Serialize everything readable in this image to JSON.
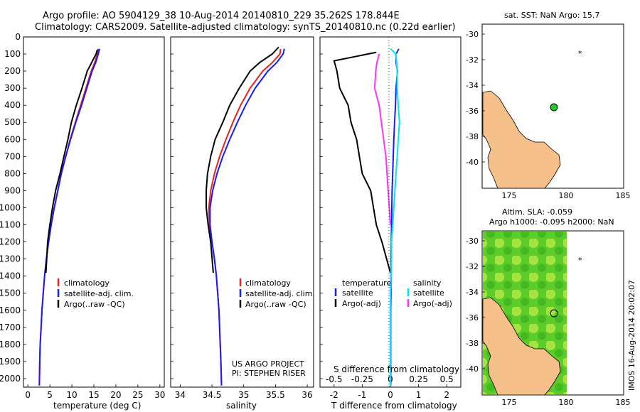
{
  "header": {
    "line1": "Argo profile: AO 5904129_38 10-Aug-2014 20140810_229 35.262S 178.844E",
    "line2": "Climatology: CARS2009. Satellite-adjusted climatology: synTS_20140810.nc (0.22d earlier)"
  },
  "colors": {
    "climatology": "#e8231a",
    "satellite": "#1a1aff",
    "argo": "#000000",
    "sal_sat": "#00e5ee",
    "sal_argo": "#ff33ff",
    "land": "#f6c08b"
  },
  "panels": {
    "temperature": {
      "xlabel": "temperature (deg C)",
      "xticks": [
        "0",
        "5",
        "10",
        "15",
        "20",
        "25",
        "30"
      ],
      "yticks": [
        "0",
        "100",
        "200",
        "300",
        "400",
        "500",
        "600",
        "700",
        "800",
        "900",
        "1000",
        "1100",
        "1200",
        "1300",
        "1400",
        "1500",
        "1600",
        "1700",
        "1800",
        "1900",
        "2000"
      ],
      "legend": [
        "climatology",
        "satellite-adj. clim.",
        "Argo(..raw -QC)"
      ]
    },
    "salinity": {
      "xlabel": "salinity",
      "xticks": [
        "34",
        "34.5",
        "35",
        "35.5",
        "36"
      ],
      "legend": [
        "climatology",
        "satellite-adj. clim.",
        "Argo(..raw -QC)"
      ],
      "credit1": "US ARGO PROJECT",
      "credit2": "PI: STEPHEN RISER"
    },
    "difference": {
      "xlabel_bottom": "T difference from climatology",
      "xlabel_top": "S difference from climatology",
      "xticks_bottom": [
        "-2",
        "-1",
        "0",
        "1",
        "2"
      ],
      "xticks_top": [
        "-0.5",
        "-0.25",
        "0",
        "0.25",
        "0.5"
      ],
      "legend_t_title": "temperature",
      "legend_s_title": "salinity",
      "legend_t": [
        "satellite",
        "Argo(-adj)"
      ],
      "legend_s": [
        "satellite",
        "Argo(-adj)"
      ]
    }
  },
  "maps": {
    "top_title": "sat. SST: NaN Argo: 15.7",
    "bottom_title1": "Altim. SLA: -0.059",
    "bottom_title2": "Argo h1000: -0.095 h2000: NaN",
    "yticks": [
      "-30",
      "-32",
      "-34",
      "-36",
      "-38",
      "-40"
    ],
    "xticks": [
      "175",
      "180",
      "185"
    ],
    "side_label": "IMOS 16-Aug-2014 20:02:07"
  },
  "chart_data": [
    {
      "type": "line",
      "title": "",
      "xlabel": "temperature (deg C)",
      "ylabel": "",
      "xlim": [
        -1,
        31
      ],
      "ylim": [
        2050,
        0
      ],
      "series": [
        {
          "name": "climatology",
          "x": [
            16.0,
            15.8,
            15.2,
            14.4,
            13.2,
            12.0,
            10.8,
            9.6,
            8.6,
            7.6,
            6.8,
            6.0,
            5.3,
            4.7,
            4.2,
            3.8,
            3.5,
            3.2,
            3.0,
            2.8,
            2.7,
            2.6
          ],
          "y": [
            70,
            100,
            150,
            200,
            300,
            400,
            500,
            600,
            700,
            800,
            900,
            1000,
            1100,
            1200,
            1300,
            1400,
            1500,
            1600,
            1700,
            1800,
            1900,
            2040
          ]
        },
        {
          "name": "satellite-adj. clim.",
          "x": [
            16.3,
            16.0,
            15.4,
            14.6,
            13.4,
            12.2,
            10.9,
            9.7,
            8.6,
            7.6,
            6.8,
            6.0,
            5.3,
            4.7,
            4.2,
            3.8,
            3.5,
            3.2,
            3.0,
            2.8,
            2.7,
            2.6
          ],
          "y": [
            70,
            100,
            150,
            200,
            300,
            400,
            500,
            600,
            700,
            800,
            900,
            1000,
            1100,
            1200,
            1300,
            1400,
            1500,
            1600,
            1700,
            1800,
            1900,
            2040
          ]
        },
        {
          "name": "Argo(..raw -QC)",
          "x": [
            15.8,
            15.5,
            14.5,
            13.5,
            12.3,
            11.0,
            9.9,
            9.1,
            8.2,
            7.3,
            6.3,
            5.6,
            5.0,
            4.5,
            4.1
          ],
          "y": [
            75,
            100,
            150,
            200,
            300,
            400,
            500,
            600,
            700,
            800,
            900,
            1000,
            1100,
            1200,
            1380
          ]
        }
      ]
    },
    {
      "type": "line",
      "title": "",
      "xlabel": "salinity",
      "ylabel": "",
      "xlim": [
        33.85,
        36.1
      ],
      "ylim": [
        2050,
        0
      ],
      "series": [
        {
          "name": "climatology",
          "x": [
            35.58,
            35.57,
            35.45,
            35.3,
            35.1,
            34.95,
            34.83,
            34.72,
            34.62,
            34.54,
            34.48,
            34.45,
            34.46,
            34.5,
            34.54,
            34.57,
            34.59,
            34.61,
            34.62,
            34.63,
            34.64,
            34.65
          ],
          "y": [
            70,
            100,
            150,
            200,
            300,
            400,
            500,
            600,
            700,
            800,
            900,
            1000,
            1100,
            1200,
            1300,
            1400,
            1500,
            1600,
            1700,
            1800,
            1900,
            2040
          ]
        },
        {
          "name": "satellite-adj. clim.",
          "x": [
            35.64,
            35.62,
            35.52,
            35.38,
            35.18,
            35.03,
            34.9,
            34.78,
            34.67,
            34.58,
            34.51,
            34.47,
            34.47,
            34.5,
            34.54,
            34.57,
            34.59,
            34.61,
            34.62,
            34.63,
            34.64,
            34.65
          ],
          "y": [
            70,
            100,
            150,
            200,
            300,
            400,
            500,
            600,
            700,
            800,
            900,
            1000,
            1100,
            1200,
            1300,
            1400,
            1500,
            1600,
            1700,
            1800,
            1900,
            2040
          ]
        },
        {
          "name": "Argo(..raw -QC)",
          "x": [
            35.55,
            35.5,
            35.45,
            35.25,
            35.1,
            34.93,
            34.78,
            34.67,
            34.55,
            34.48,
            34.43,
            34.41,
            34.41,
            34.44,
            34.48,
            34.52
          ],
          "y": [
            60,
            80,
            100,
            150,
            200,
            300,
            400,
            500,
            600,
            700,
            800,
            900,
            1000,
            1100,
            1200,
            1380
          ]
        }
      ]
    },
    {
      "type": "line",
      "title": "",
      "xlabel": "T difference from climatology",
      "ylabel": "",
      "xlim": [
        -2.5,
        2.5
      ],
      "ylim": [
        2050,
        0
      ],
      "series": [
        {
          "name": "satellite",
          "x": [
            0.3,
            0.2,
            0.2,
            0.25,
            0.2,
            0.18,
            0.15,
            0.12,
            0.1,
            0.08,
            0.06,
            0.05,
            0.04,
            0.03,
            0.02,
            0.02,
            0.02,
            0.01,
            0.01,
            0.01,
            0.01,
            0.01
          ],
          "y": [
            70,
            100,
            150,
            200,
            300,
            400,
            500,
            600,
            700,
            800,
            900,
            1000,
            1100,
            1200,
            1300,
            1400,
            1500,
            1600,
            1700,
            1800,
            1900,
            2040
          ]
        },
        {
          "name": "Argo(-adj)",
          "x": [
            -0.5,
            -2.0,
            -1.9,
            -1.8,
            -1.5,
            -1.4,
            -1.2,
            -1.1,
            -1.0,
            -0.7,
            -0.6,
            -0.5,
            -0.3,
            0.0
          ],
          "y": [
            90,
            140,
            200,
            300,
            400,
            500,
            600,
            700,
            800,
            900,
            1000,
            1100,
            1200,
            1380
          ]
        }
      ]
    },
    {
      "type": "line",
      "title": "",
      "xlabel": "S difference from climatology",
      "ylabel": "",
      "xlim": [
        -0.625,
        0.625
      ],
      "ylim": [
        2050,
        0
      ],
      "series": [
        {
          "name": "satellite",
          "x": [
            0.0,
            0.05,
            0.06,
            0.06,
            0.07,
            0.08,
            0.07,
            0.06,
            0.05,
            0.04,
            0.03,
            0.02,
            0.01,
            0.01,
            0.0,
            0.0
          ],
          "y": [
            70,
            100,
            200,
            300,
            400,
            500,
            600,
            700,
            800,
            900,
            1000,
            1100,
            1200,
            1300,
            1500,
            2040
          ]
        },
        {
          "name": "Argo(-adj)",
          "x": [
            -0.1,
            -0.12,
            -0.13,
            -0.14,
            -0.1,
            -0.08,
            -0.06,
            -0.04,
            -0.03,
            -0.02,
            -0.01,
            0.0
          ],
          "y": [
            100,
            150,
            200,
            300,
            400,
            500,
            600,
            700,
            800,
            900,
            1000,
            1100
          ]
        }
      ]
    }
  ]
}
